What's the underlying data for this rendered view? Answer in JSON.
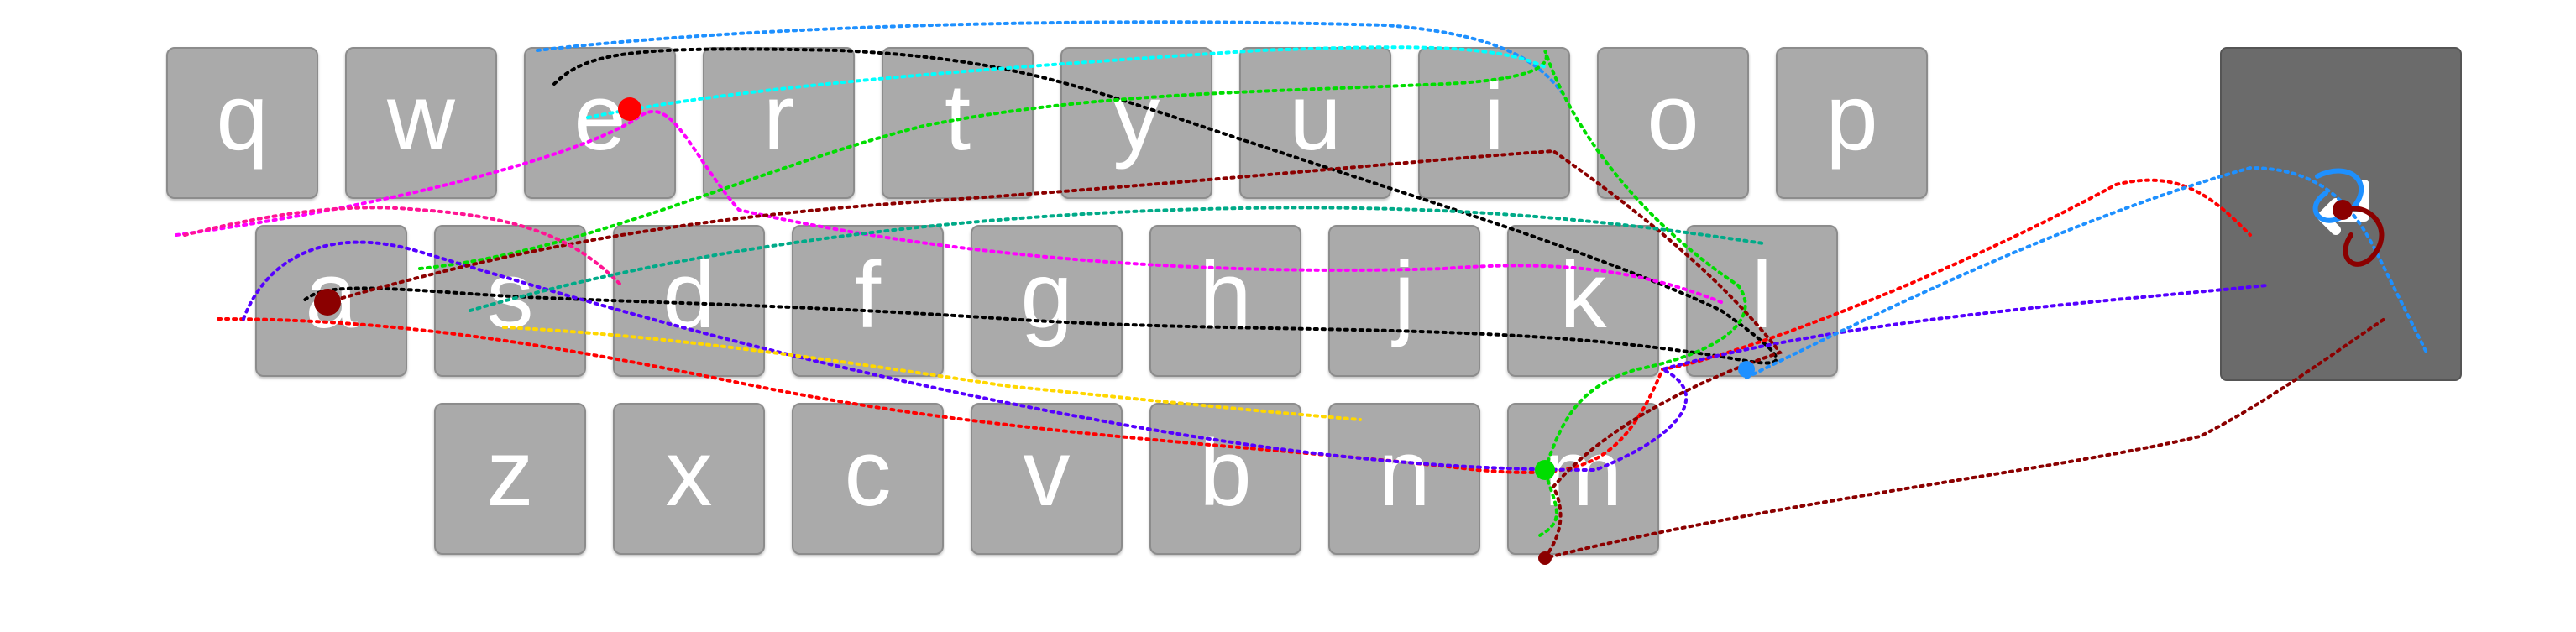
{
  "keyboard": {
    "row1": [
      "q",
      "w",
      "e",
      "r",
      "t",
      "y",
      "u",
      "i",
      "o",
      "p"
    ],
    "row2": [
      "a",
      "s",
      "d",
      "f",
      "g",
      "h",
      "j",
      "k",
      "l"
    ],
    "row3": [
      "z",
      "x",
      "c",
      "v",
      "b",
      "n",
      "m"
    ],
    "enter_icon": "enter-icon"
  },
  "colors": {
    "key_fill": "#aaaaaa",
    "key_text": "#ffffff",
    "enter_fill": "#6b6b6b",
    "trace_palette": [
      "#0000ff",
      "#ff0000",
      "#00dd00",
      "#ff00ff",
      "#000000",
      "#1e90ff",
      "#8b0000",
      "#00ffff",
      "#ffd700",
      "#7b00ff",
      "#ff1493",
      "#00aa88"
    ]
  }
}
